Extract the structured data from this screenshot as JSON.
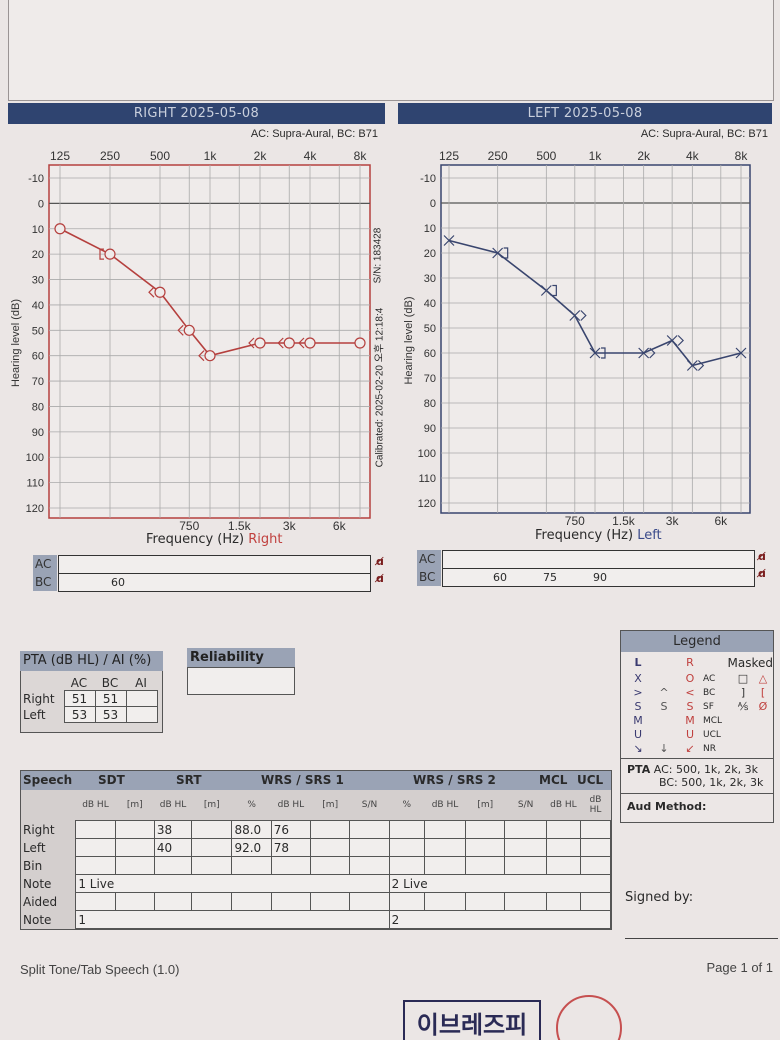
{
  "right_panel": {
    "title": "RIGHT  2025-05-08",
    "transducer": "AC: Supra-Aural, BC: B71",
    "serial": "S/N: 183428",
    "calibrated": "Calibrated: 2025-02-20 오후 12:18:4",
    "freq_label": "Frequency  (Hz)",
    "ear_label": "Right",
    "masking": {
      "ac_label": "AC",
      "bc_label": "BC",
      "ac_values": [],
      "bc_values": [
        "60"
      ]
    }
  },
  "left_panel": {
    "title": "LEFT  2025-05-08",
    "transducer": "AC: Supra-Aural, BC: B71",
    "freq_label": "Frequency  (Hz)",
    "ear_label": "Left",
    "masking": {
      "ac_label": "AC",
      "bc_label": "BC",
      "ac_values": [],
      "bc_values": [
        "60",
        "75",
        "90"
      ]
    }
  },
  "chart_data": [
    {
      "type": "line",
      "title": "RIGHT 2025-05-08",
      "xlabel": "Frequency (Hz) Right",
      "ylabel": "Hearing level (dB)",
      "xscale": "log",
      "xlim": [
        125,
        8000
      ],
      "ylim": [
        -10,
        120
      ],
      "y_inverted": true,
      "top_ticks": [
        [
          "125",
          125
        ],
        [
          "250",
          250
        ],
        [
          "500",
          500
        ],
        [
          "1k",
          1000
        ],
        [
          "2k",
          2000
        ],
        [
          "4k",
          4000
        ],
        [
          "8k",
          8000
        ]
      ],
      "bottom_ticks": [
        [
          "750",
          750
        ],
        [
          "1.5k",
          1500
        ],
        [
          "3k",
          3000
        ],
        [
          "6k",
          6000
        ]
      ],
      "yticks": [
        -10,
        0,
        10,
        20,
        30,
        40,
        50,
        60,
        70,
        80,
        90,
        100,
        110,
        120
      ],
      "color": "#b5403e",
      "series": [
        {
          "name": "AC unmasked (O)",
          "symbol": "O",
          "connected": true,
          "x": [
            125,
            250,
            500,
            750,
            1000,
            2000,
            3000,
            4000,
            8000
          ],
          "y": [
            10,
            20,
            35,
            50,
            60,
            55,
            55,
            55,
            55
          ]
        },
        {
          "name": "BC unmasked (<)",
          "symbol": "<",
          "connected": false,
          "x": [
            500,
            750,
            1000,
            2000,
            3000,
            4000
          ],
          "y": [
            35,
            50,
            60,
            55,
            55,
            55
          ]
        },
        {
          "name": "BC masked ([)",
          "symbol": "[",
          "connected": false,
          "x": [
            250
          ],
          "y": [
            20
          ]
        }
      ]
    },
    {
      "type": "line",
      "title": "LEFT 2025-05-08",
      "xlabel": "Frequency (Hz) Left",
      "ylabel": "Hearing level (dB)",
      "xscale": "log",
      "xlim": [
        125,
        8000
      ],
      "ylim": [
        -10,
        120
      ],
      "y_inverted": true,
      "top_ticks": [
        [
          "125",
          125
        ],
        [
          "250",
          250
        ],
        [
          "500",
          500
        ],
        [
          "1k",
          1000
        ],
        [
          "2k",
          2000
        ],
        [
          "4k",
          4000
        ],
        [
          "8k",
          8000
        ]
      ],
      "bottom_ticks": [
        [
          "750",
          750
        ],
        [
          "1.5k",
          1500
        ],
        [
          "3k",
          3000
        ],
        [
          "6k",
          6000
        ]
      ],
      "yticks": [
        -10,
        0,
        10,
        20,
        30,
        40,
        50,
        60,
        70,
        80,
        90,
        100,
        110,
        120
      ],
      "color": "#39456e",
      "series": [
        {
          "name": "AC unmasked (X)",
          "symbol": "X",
          "connected": true,
          "x": [
            125,
            250,
            500,
            750,
            1000,
            2000,
            3000,
            4000,
            8000
          ],
          "y": [
            15,
            20,
            35,
            45,
            60,
            60,
            55,
            65,
            60
          ]
        },
        {
          "name": "BC unmasked (>)",
          "symbol": ">",
          "connected": false,
          "x": [
            750,
            2000,
            3000,
            4000
          ],
          "y": [
            45,
            60,
            55,
            65
          ]
        },
        {
          "name": "BC masked (])",
          "symbol": "]",
          "connected": false,
          "x": [
            250,
            500,
            1000
          ],
          "y": [
            20,
            35,
            60
          ]
        }
      ]
    }
  ],
  "pta": {
    "title": "PTA (dB HL) / AI (%)",
    "cols": [
      "AC",
      "BC",
      "AI"
    ],
    "rows": [
      {
        "label": "Right",
        "ac": "51",
        "bc": "51",
        "ai": ""
      },
      {
        "label": "Left",
        "ac": "53",
        "bc": "53",
        "ai": ""
      }
    ]
  },
  "reliability": {
    "title": "Reliability",
    "value": ""
  },
  "legend": {
    "title": "Legend",
    "col_l": "L",
    "col_r": "R",
    "col_masked": "Masked",
    "rows": [
      {
        "l": "X",
        "mid": "",
        "r": "O",
        "type": "AC",
        "ml": "□",
        "mr": "△"
      },
      {
        "l": ">",
        "mid": "^",
        "r": "<",
        "type": "BC",
        "ml": "]",
        "mr": "["
      },
      {
        "l": "S",
        "mid": "S",
        "r": "S",
        "type": "SF",
        "ml": "⅍",
        "mr": "Ø"
      },
      {
        "l": "M",
        "mid": "",
        "r": "M",
        "type": "MCL",
        "ml": "",
        "mr": ""
      },
      {
        "l": "U",
        "mid": "",
        "r": "U",
        "type": "UCL",
        "ml": "",
        "mr": ""
      },
      {
        "l": "↘",
        "mid": "↓",
        "r": "↙",
        "type": "NR",
        "ml": "",
        "mr": ""
      }
    ],
    "pta_label": "PTA",
    "pta_ac": "AC: 500, 1k, 2k, 3k",
    "pta_bc": "BC: 500, 1k, 2k, 3k",
    "aud_method": "Aud Method:"
  },
  "speech": {
    "headers": {
      "speech": "Speech",
      "sdt": "SDT",
      "srt": "SRT",
      "wrs1": "WRS / SRS 1",
      "wrs2": "WRS / SRS 2",
      "mcl": "MCL",
      "ucl": "UCL"
    },
    "subheaders": [
      "dB HL",
      "[m]",
      "dB HL",
      "[m]",
      "%",
      "dB HL",
      "[m]",
      "S/N",
      "%",
      "dB HL",
      "[m]",
      "S/N",
      "dB HL",
      "dB HL"
    ],
    "rows": [
      {
        "label": "Right",
        "cells": [
          "",
          "",
          "38",
          "",
          "88.0",
          "76",
          "",
          "",
          "",
          "",
          "",
          "",
          "",
          ""
        ]
      },
      {
        "label": "Left",
        "cells": [
          "",
          "",
          "40",
          "",
          "92.0",
          "78",
          "",
          "",
          "",
          "",
          "",
          "",
          "",
          ""
        ]
      },
      {
        "label": "Bin",
        "cells": [
          "",
          "",
          "",
          "",
          "",
          "",
          "",
          "",
          "",
          "",
          "",
          "",
          "",
          ""
        ]
      }
    ],
    "note1_label": "Note",
    "note1_a": "1 Live",
    "note1_b": "2 Live",
    "aided_label": "Aided",
    "note2_label": "Note",
    "note2_a": "1",
    "note2_b": "2"
  },
  "signed_by": "Signed by:",
  "footer": {
    "left": "Split Tone/Tab Speech (1.0)",
    "right": "Page 1 of 1"
  },
  "stamp": {
    "box_text": "이브레즈피"
  }
}
